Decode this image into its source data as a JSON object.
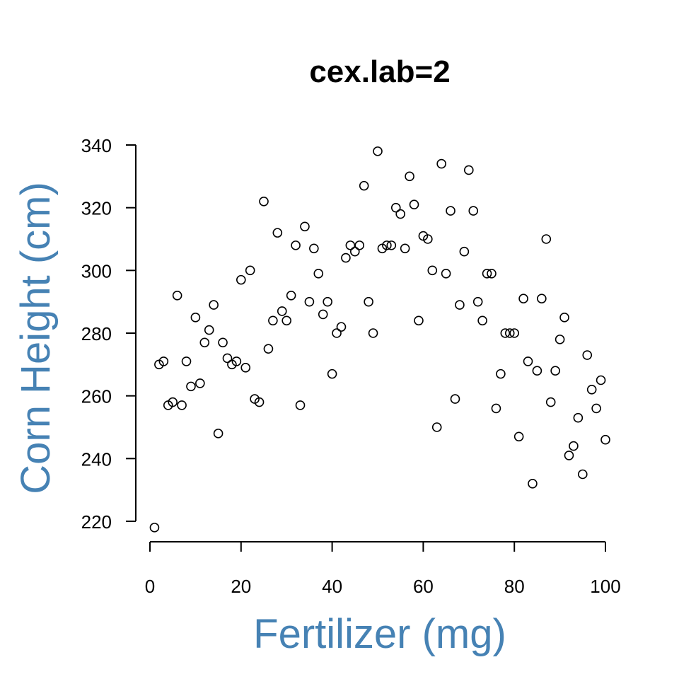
{
  "chart_data": {
    "type": "scatter",
    "title": "cex.lab=2",
    "xlabel": "Fertilizer (mg)",
    "ylabel": "Corn Height (cm)",
    "label_color": "#4682B4",
    "point_style": "open-circle",
    "xlim": [
      0,
      100
    ],
    "ylim": [
      220,
      340
    ],
    "x_ticks": [
      "0",
      "20",
      "40",
      "60",
      "80",
      "100"
    ],
    "y_ticks": [
      "220",
      "240",
      "260",
      "280",
      "300",
      "320",
      "340"
    ],
    "grid": false,
    "legend": "none",
    "points": [
      {
        "x": 1,
        "y": 218
      },
      {
        "x": 2,
        "y": 270
      },
      {
        "x": 3,
        "y": 271
      },
      {
        "x": 4,
        "y": 257
      },
      {
        "x": 5,
        "y": 258
      },
      {
        "x": 6,
        "y": 292
      },
      {
        "x": 7,
        "y": 257
      },
      {
        "x": 8,
        "y": 271
      },
      {
        "x": 9,
        "y": 263
      },
      {
        "x": 10,
        "y": 285
      },
      {
        "x": 11,
        "y": 264
      },
      {
        "x": 12,
        "y": 277
      },
      {
        "x": 13,
        "y": 281
      },
      {
        "x": 14,
        "y": 289
      },
      {
        "x": 15,
        "y": 248
      },
      {
        "x": 16,
        "y": 277
      },
      {
        "x": 17,
        "y": 272
      },
      {
        "x": 18,
        "y": 270
      },
      {
        "x": 19,
        "y": 271
      },
      {
        "x": 20,
        "y": 297
      },
      {
        "x": 21,
        "y": 269
      },
      {
        "x": 22,
        "y": 300
      },
      {
        "x": 23,
        "y": 259
      },
      {
        "x": 24,
        "y": 258
      },
      {
        "x": 25,
        "y": 322
      },
      {
        "x": 26,
        "y": 275
      },
      {
        "x": 27,
        "y": 284
      },
      {
        "x": 28,
        "y": 312
      },
      {
        "x": 29,
        "y": 287
      },
      {
        "x": 30,
        "y": 284
      },
      {
        "x": 31,
        "y": 292
      },
      {
        "x": 32,
        "y": 308
      },
      {
        "x": 33,
        "y": 257
      },
      {
        "x": 34,
        "y": 314
      },
      {
        "x": 35,
        "y": 290
      },
      {
        "x": 36,
        "y": 307
      },
      {
        "x": 37,
        "y": 299
      },
      {
        "x": 38,
        "y": 286
      },
      {
        "x": 39,
        "y": 290
      },
      {
        "x": 40,
        "y": 267
      },
      {
        "x": 41,
        "y": 280
      },
      {
        "x": 42,
        "y": 282
      },
      {
        "x": 43,
        "y": 304
      },
      {
        "x": 44,
        "y": 308
      },
      {
        "x": 45,
        "y": 306
      },
      {
        "x": 46,
        "y": 308
      },
      {
        "x": 47,
        "y": 327
      },
      {
        "x": 48,
        "y": 290
      },
      {
        "x": 49,
        "y": 280
      },
      {
        "x": 50,
        "y": 338
      },
      {
        "x": 51,
        "y": 307
      },
      {
        "x": 52,
        "y": 308
      },
      {
        "x": 53,
        "y": 308
      },
      {
        "x": 54,
        "y": 320
      },
      {
        "x": 55,
        "y": 318
      },
      {
        "x": 56,
        "y": 307
      },
      {
        "x": 57,
        "y": 330
      },
      {
        "x": 58,
        "y": 321
      },
      {
        "x": 59,
        "y": 284
      },
      {
        "x": 60,
        "y": 311
      },
      {
        "x": 61,
        "y": 310
      },
      {
        "x": 62,
        "y": 300
      },
      {
        "x": 63,
        "y": 250
      },
      {
        "x": 64,
        "y": 334
      },
      {
        "x": 65,
        "y": 299
      },
      {
        "x": 66,
        "y": 319
      },
      {
        "x": 67,
        "y": 259
      },
      {
        "x": 68,
        "y": 289
      },
      {
        "x": 69,
        "y": 306
      },
      {
        "x": 70,
        "y": 332
      },
      {
        "x": 71,
        "y": 319
      },
      {
        "x": 72,
        "y": 290
      },
      {
        "x": 73,
        "y": 284
      },
      {
        "x": 74,
        "y": 299
      },
      {
        "x": 75,
        "y": 299
      },
      {
        "x": 76,
        "y": 256
      },
      {
        "x": 77,
        "y": 267
      },
      {
        "x": 78,
        "y": 280
      },
      {
        "x": 79,
        "y": 280
      },
      {
        "x": 80,
        "y": 280
      },
      {
        "x": 81,
        "y": 247
      },
      {
        "x": 82,
        "y": 291
      },
      {
        "x": 83,
        "y": 271
      },
      {
        "x": 84,
        "y": 232
      },
      {
        "x": 85,
        "y": 268
      },
      {
        "x": 86,
        "y": 291
      },
      {
        "x": 87,
        "y": 310
      },
      {
        "x": 88,
        "y": 258
      },
      {
        "x": 89,
        "y": 268
      },
      {
        "x": 90,
        "y": 278
      },
      {
        "x": 91,
        "y": 285
      },
      {
        "x": 92,
        "y": 241
      },
      {
        "x": 93,
        "y": 244
      },
      {
        "x": 94,
        "y": 253
      },
      {
        "x": 95,
        "y": 235
      },
      {
        "x": 96,
        "y": 273
      },
      {
        "x": 97,
        "y": 262
      },
      {
        "x": 98,
        "y": 256
      },
      {
        "x": 99,
        "y": 265
      },
      {
        "x": 100,
        "y": 246
      }
    ]
  }
}
